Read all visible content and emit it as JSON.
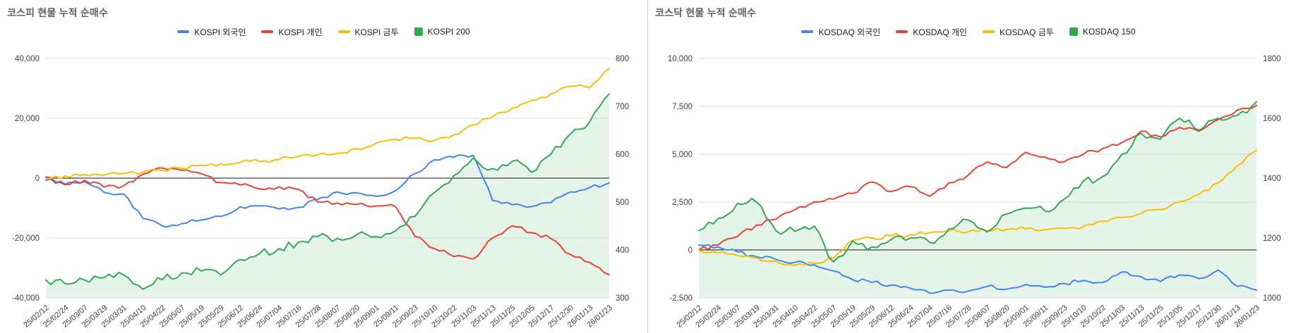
{
  "chart_data": [
    {
      "type": "line",
      "title": "코스피 현물 누적 순매수",
      "x_labels": [
        "25/02/12",
        "25/02/24",
        "25/03/07",
        "25/03/19",
        "25/03/31",
        "25/04/10",
        "25/04/22",
        "25/05/07",
        "25/05/19",
        "25/05/29",
        "25/06/12",
        "25/06/24",
        "25/07/04",
        "25/07/16",
        "25/07/28",
        "25/08/07",
        "25/08/20",
        "25/09/01",
        "25/09/11",
        "25/09/23",
        "25/10/10",
        "25/10/22",
        "25/11/03",
        "25/11/13",
        "25/11/25",
        "25/12/05",
        "25/12/17",
        "25/12/30",
        "26/01/13",
        "26/01/23"
      ],
      "left_axis": {
        "min": -40000,
        "max": 40000,
        "grid": true,
        "ticks": [
          {
            "v": 40000,
            "label": "40,000"
          },
          {
            "v": 20000,
            "label": "20,000"
          },
          {
            "v": 0,
            "label": "0"
          },
          {
            "v": -20000,
            "label": "-20,000"
          },
          {
            "v": -40000,
            "label": "-40,000"
          }
        ]
      },
      "right_axis": {
        "min": 300,
        "max": 800,
        "grid": false,
        "ticks": [
          {
            "v": 800,
            "label": "800"
          },
          {
            "v": 700,
            "label": "700"
          },
          {
            "v": 600,
            "label": "600"
          },
          {
            "v": 500,
            "label": "500"
          },
          {
            "v": 400,
            "label": "400"
          },
          {
            "v": 300,
            "label": "300"
          }
        ]
      },
      "series": [
        {
          "name": "KOSPI 외국인",
          "axis": "left",
          "style": "line",
          "color": "#4285f4",
          "values": [
            -700,
            -2000,
            -1200,
            -4800,
            -5300,
            -13500,
            -16000,
            -15200,
            -14000,
            -12800,
            -9600,
            -9300,
            -10300,
            -9800,
            -7000,
            -4600,
            -4900,
            -6100,
            -4200,
            1500,
            6100,
            7000,
            7600,
            -7500,
            -8900,
            -9500,
            -8200,
            -4600,
            -3100,
            -1600
          ]
        },
        {
          "name": "KOSPI 개인",
          "axis": "left",
          "style": "line",
          "color": "#ea4335",
          "values": [
            400,
            -2200,
            -700,
            -3000,
            -2600,
            1300,
            3400,
            2600,
            1500,
            -1500,
            -2300,
            -3600,
            -2900,
            -3800,
            -8000,
            -8300,
            -8800,
            -9300,
            -9500,
            -19500,
            -23500,
            -26200,
            -27000,
            -20000,
            -16000,
            -18200,
            -20200,
            -25500,
            -28200,
            -32300
          ]
        },
        {
          "name": "KOSPI 금투",
          "axis": "left",
          "style": "line",
          "color": "#fbbc04",
          "values": [
            -100,
            700,
            1200,
            1000,
            1500,
            2000,
            2600,
            3300,
            4300,
            4800,
            5200,
            5600,
            6200,
            7300,
            7800,
            8300,
            9800,
            11700,
            13000,
            13400,
            12500,
            14500,
            17800,
            20500,
            23400,
            26000,
            28100,
            30700,
            30200,
            36500
          ]
        },
        {
          "name": "KOSPI 200",
          "axis": "right",
          "style": "area",
          "color": "#34a853",
          "fill_opacity": 0.13,
          "values": [
            337,
            329,
            337,
            342,
            348,
            318,
            338,
            352,
            356,
            348,
            380,
            392,
            403,
            416,
            428,
            424,
            432,
            428,
            440,
            470,
            520,
            555,
            592,
            570,
            585,
            562,
            600,
            642,
            668,
            726
          ]
        }
      ]
    },
    {
      "type": "line",
      "title": "코스닥 현물 누적 순매수",
      "x_labels": [
        "25/02/12",
        "25/02/24",
        "25/03/07",
        "25/03/19",
        "25/03/31",
        "25/04/10",
        "25/04/22",
        "25/05/07",
        "25/05/19",
        "25/05/29",
        "25/06/12",
        "25/06/24",
        "25/07/04",
        "25/07/16",
        "25/07/28",
        "25/08/07",
        "25/08/20",
        "25/09/01",
        "25/09/11",
        "25/09/23",
        "25/10/10",
        "25/10/22",
        "25/11/03",
        "25/11/13",
        "25/11/25",
        "25/12/05",
        "25/12/17",
        "25/12/30",
        "26/01/13",
        "26/01/23"
      ],
      "left_axis": {
        "min": -2500,
        "max": 10000,
        "grid": true,
        "ticks": [
          {
            "v": 10000,
            "label": "10,000"
          },
          {
            "v": 7500,
            "label": "7,500"
          },
          {
            "v": 5000,
            "label": "5,000"
          },
          {
            "v": 2500,
            "label": "2,500"
          },
          {
            "v": 0,
            "label": "0"
          },
          {
            "v": -2500,
            "label": "-2,500"
          }
        ]
      },
      "right_axis": {
        "min": 1000,
        "max": 1800,
        "grid": false,
        "ticks": [
          {
            "v": 1800,
            "label": "1800"
          },
          {
            "v": 1600,
            "label": "1600"
          },
          {
            "v": 1400,
            "label": "1400"
          },
          {
            "v": 1200,
            "label": "1200"
          },
          {
            "v": 1000,
            "label": "1000"
          }
        ]
      },
      "series": [
        {
          "name": "KOSDAQ 외국인",
          "axis": "left",
          "style": "line",
          "color": "#4285f4",
          "values": [
            250,
            150,
            -100,
            -350,
            -500,
            -650,
            -780,
            -1100,
            -1550,
            -1700,
            -1840,
            -2000,
            -2250,
            -2100,
            -2150,
            -1900,
            -2050,
            -1800,
            -1950,
            -1750,
            -1600,
            -1700,
            -1150,
            -1400,
            -1650,
            -1300,
            -1500,
            -1050,
            -1900,
            -2100
          ]
        },
        {
          "name": "KOSDAQ 개인",
          "axis": "left",
          "style": "line",
          "color": "#ea4335",
          "values": [
            0,
            250,
            700,
            1300,
            1600,
            2100,
            2500,
            2650,
            2950,
            3550,
            3050,
            3300,
            2800,
            3500,
            3900,
            4600,
            4300,
            5100,
            4850,
            4600,
            5000,
            5300,
            5600,
            6200,
            5900,
            6400,
            6200,
            6800,
            7300,
            7550
          ]
        },
        {
          "name": "KOSDAQ 금투",
          "axis": "left",
          "style": "line",
          "color": "#fbbc04",
          "values": [
            0,
            -150,
            -300,
            -420,
            -600,
            -800,
            -700,
            -420,
            500,
            620,
            730,
            800,
            900,
            1000,
            950,
            1000,
            1060,
            1100,
            1050,
            1120,
            1220,
            1500,
            1700,
            1900,
            2100,
            2500,
            2900,
            3500,
            4400,
            5200
          ]
        },
        {
          "name": "KOSDAQ 150",
          "axis": "right",
          "style": "area",
          "color": "#34a853",
          "fill_opacity": 0.13,
          "values": [
            1225,
            1265,
            1315,
            1320,
            1225,
            1222,
            1240,
            1120,
            1190,
            1170,
            1195,
            1200,
            1185,
            1230,
            1260,
            1220,
            1280,
            1300,
            1290,
            1330,
            1390,
            1405,
            1480,
            1550,
            1530,
            1600,
            1560,
            1600,
            1610,
            1655
          ]
        }
      ]
    }
  ],
  "colors": {
    "foreigner_blue": "#4285f4",
    "individual_red": "#ea4335",
    "fininvest_yellow": "#fbbc04",
    "index_green": "#34a853",
    "gridline": "#dedede",
    "zero_line": "#111111",
    "title_gray": "#5f6368"
  }
}
